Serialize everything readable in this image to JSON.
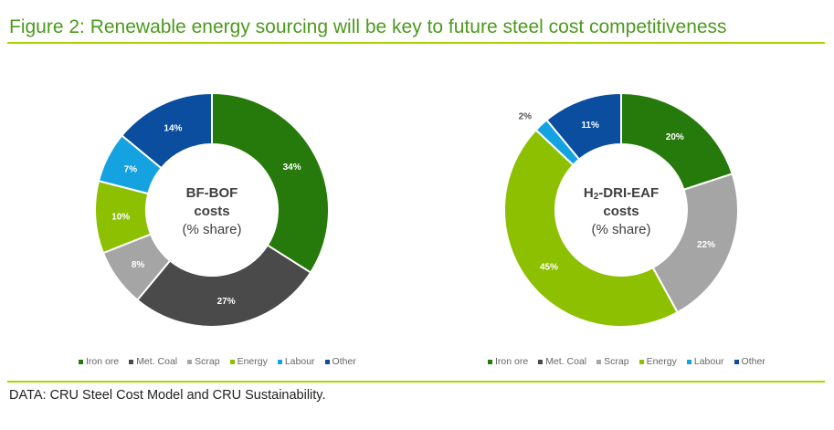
{
  "title": "Figure 2: Renewable energy sourcing will be key to future steel cost competitiveness",
  "source": "DATA: CRU Steel Cost Model and CRU Sustainability.",
  "colors": {
    "title": "#4c9a1e",
    "rule": "#a8d600"
  },
  "chart_data": [
    {
      "type": "pie",
      "variant": "donut",
      "center_title": {
        "main": "BF-BOF",
        "line2": "costs",
        "line3": "(% share)"
      },
      "categories": [
        "Iron ore",
        "Met. Coal",
        "Scrap",
        "Energy",
        "Labour",
        "Other"
      ],
      "values": [
        34,
        27,
        8,
        10,
        7,
        14
      ],
      "data_labels": [
        "34%",
        "27%",
        "8%",
        "10%",
        "7%",
        "14%"
      ],
      "colors": [
        "#267a0c",
        "#4a4a4a",
        "#a5a5a5",
        "#8dc000",
        "#14a3e0",
        "#0b4d9e"
      ],
      "legend_position": "bottom"
    },
    {
      "type": "pie",
      "variant": "donut",
      "center_title": {
        "main_prefix": "H",
        "main_sub": "2",
        "main_suffix": "-DRI-EAF",
        "line2": "costs",
        "line3": "(% share)"
      },
      "categories": [
        "Iron ore",
        "Met. Coal",
        "Scrap",
        "Energy",
        "Labour",
        "Other"
      ],
      "values": [
        20,
        0,
        22,
        45,
        2,
        11
      ],
      "data_labels": [
        "20%",
        "",
        "22%",
        "45%",
        "2%",
        "11%"
      ],
      "colors": [
        "#267a0c",
        "#4a4a4a",
        "#a5a5a5",
        "#8dc000",
        "#14a3e0",
        "#0b4d9e"
      ],
      "legend_position": "bottom"
    }
  ]
}
